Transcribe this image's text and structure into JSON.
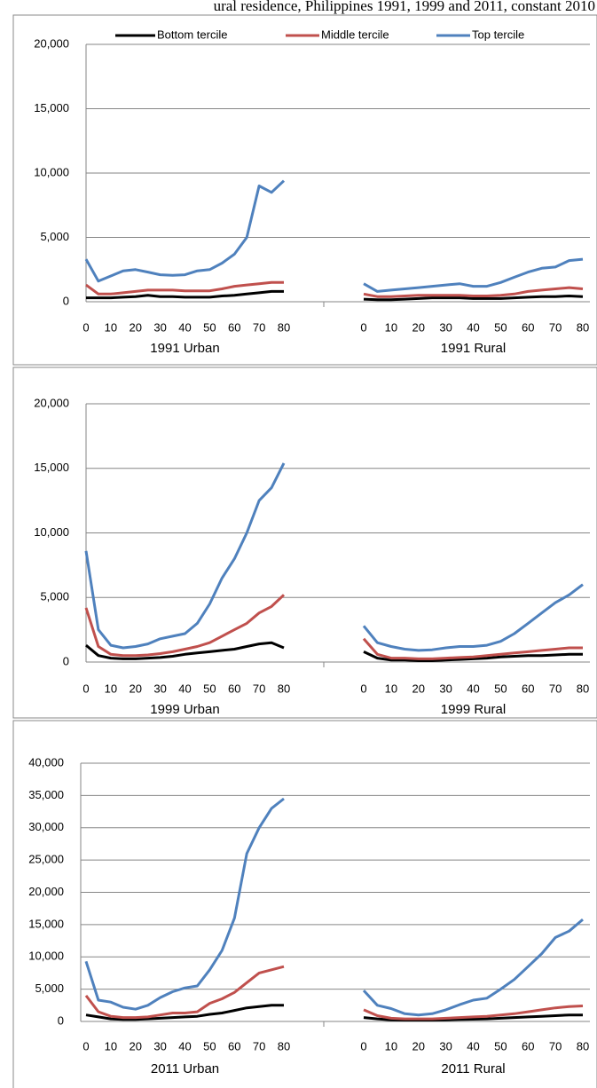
{
  "title": "ural residence, Philippines 1991, 1999 and 2011, constant 2010",
  "series": [
    {
      "name": "Bottom tercile",
      "color": "#000000"
    },
    {
      "name": "Middle tercile",
      "color": "#c0504d"
    },
    {
      "name": "Top tercile",
      "color": "#4f81bd"
    }
  ],
  "chart_data": [
    {
      "type": "line",
      "legend": "top",
      "x": [
        0,
        5,
        10,
        15,
        20,
        25,
        30,
        35,
        40,
        45,
        50,
        55,
        60,
        65,
        70,
        75,
        80
      ],
      "xticks": [
        0,
        10,
        20,
        30,
        40,
        50,
        60,
        70,
        80
      ],
      "ylim": [
        0,
        20000
      ],
      "yticks": [
        0,
        {
          "value": 5000,
          "label": "5,000"
        },
        {
          "value": 10000,
          "label": "10,000"
        },
        {
          "value": 15000,
          "label": "15,000"
        },
        {
          "value": 20000,
          "label": "20,000"
        }
      ],
      "grid": true,
      "panels": [
        {
          "label": "1991 Urban",
          "values": [
            [
              300,
              300,
              300,
              350,
              400,
              500,
              400,
              400,
              350,
              350,
              350,
              450,
              500,
              600,
              700,
              800,
              800
            ],
            [
              1300,
              600,
              600,
              700,
              800,
              900,
              900,
              900,
              850,
              850,
              850,
              1000,
              1200,
              1300,
              1400,
              1500,
              1500
            ],
            [
              3300,
              1600,
              2000,
              2400,
              2500,
              2300,
              2100,
              2050,
              2100,
              2400,
              2500,
              3000,
              3700,
              5000,
              9000,
              8500,
              9400
            ]
          ]
        },
        {
          "label": "1991 Rural",
          "values": [
            [
              200,
              150,
              150,
              200,
              250,
              300,
              300,
              300,
              250,
              250,
              250,
              300,
              350,
              400,
              400,
              450,
              400
            ],
            [
              600,
              400,
              400,
              450,
              500,
              500,
              500,
              500,
              450,
              450,
              500,
              600,
              800,
              900,
              1000,
              1100,
              1000
            ],
            [
              1400,
              800,
              900,
              1000,
              1100,
              1200,
              1300,
              1400,
              1200,
              1200,
              1500,
              1900,
              2300,
              2600,
              2700,
              3200,
              3300
            ]
          ]
        }
      ]
    },
    {
      "type": "line",
      "x": [
        0,
        5,
        10,
        15,
        20,
        25,
        30,
        35,
        40,
        45,
        50,
        55,
        60,
        65,
        70,
        75,
        80
      ],
      "xticks": [
        0,
        10,
        20,
        30,
        40,
        50,
        60,
        70,
        80
      ],
      "ylim": [
        0,
        20000
      ],
      "yticks": [
        0,
        {
          "value": 5000,
          "label": "5,000"
        },
        {
          "value": 10000,
          "label": "10,000"
        },
        {
          "value": 15000,
          "label": "15,000"
        },
        {
          "value": 20000,
          "label": "20,000"
        }
      ],
      "grid": true,
      "panels": [
        {
          "label": "1999 Urban",
          "values": [
            [
              1300,
              500,
              300,
              250,
              250,
              300,
              350,
              450,
              600,
              700,
              800,
              900,
              1000,
              1200,
              1400,
              1500,
              1100
            ],
            [
              4200,
              1200,
              600,
              500,
              500,
              550,
              650,
              800,
              1000,
              1200,
              1500,
              2000,
              2500,
              3000,
              3800,
              4300,
              5200
            ],
            [
              8600,
              2500,
              1300,
              1100,
              1200,
              1400,
              1800,
              2000,
              2200,
              3000,
              4500,
              6500,
              8000,
              10000,
              12500,
              13500,
              15400
            ]
          ]
        },
        {
          "label": "1999 Rural",
          "values": [
            [
              800,
              300,
              150,
              150,
              100,
              100,
              150,
              200,
              250,
              300,
              400,
              450,
              500,
              500,
              550,
              600,
              600
            ],
            [
              1800,
              600,
              300,
              300,
              250,
              250,
              300,
              350,
              400,
              500,
              600,
              700,
              800,
              900,
              1000,
              1100,
              1100
            ],
            [
              2800,
              1500,
              1200,
              1000,
              900,
              950,
              1100,
              1200,
              1200,
              1300,
              1600,
              2200,
              3000,
              3800,
              4600,
              5200,
              6000
            ]
          ]
        }
      ]
    },
    {
      "type": "line",
      "x": [
        0,
        5,
        10,
        15,
        20,
        25,
        30,
        35,
        40,
        45,
        50,
        55,
        60,
        65,
        70,
        75,
        80
      ],
      "xticks": [
        0,
        10,
        20,
        30,
        40,
        50,
        60,
        70,
        80
      ],
      "ylim": [
        0,
        40000
      ],
      "yticks": [
        0,
        {
          "value": 5000,
          "label": "5,000"
        },
        {
          "value": 10000,
          "label": "10,000"
        },
        {
          "value": 15000,
          "label": "15,000"
        },
        {
          "value": 20000,
          "label": "20,000"
        },
        {
          "value": 25000,
          "label": "25,000"
        },
        {
          "value": 30000,
          "label": "30,000"
        },
        {
          "value": 35000,
          "label": "35,000"
        },
        {
          "value": 40000,
          "label": "40,000"
        }
      ],
      "grid": true,
      "panels": [
        {
          "label": "2011 Urban",
          "values": [
            [
              1000,
              700,
              400,
              300,
              300,
              400,
              500,
              600,
              700,
              800,
              1100,
              1300,
              1700,
              2100,
              2300,
              2500,
              2500
            ],
            [
              4000,
              1500,
              800,
              600,
              600,
              700,
              1000,
              1300,
              1300,
              1500,
              2800,
              3500,
              4500,
              6000,
              7500,
              8000,
              8500
            ],
            [
              9300,
              3300,
              3000,
              2200,
              1900,
              2500,
              3700,
              4600,
              5200,
              5500,
              8000,
              11000,
              16000,
              26000,
              30000,
              33000,
              34500
            ]
          ]
        },
        {
          "label": "2011 Rural",
          "values": [
            [
              600,
              400,
              250,
              200,
              200,
              200,
              250,
              300,
              350,
              400,
              500,
              600,
              700,
              800,
              900,
              1000,
              1000
            ],
            [
              1800,
              900,
              500,
              400,
              400,
              400,
              500,
              600,
              700,
              800,
              1000,
              1200,
              1500,
              1800,
              2100,
              2300,
              2400
            ],
            [
              4800,
              2500,
              2000,
              1200,
              1000,
              1200,
              1800,
              2600,
              3300,
              3600,
              5000,
              6500,
              8500,
              10500,
              13000,
              14000,
              15800
            ]
          ]
        }
      ]
    }
  ]
}
